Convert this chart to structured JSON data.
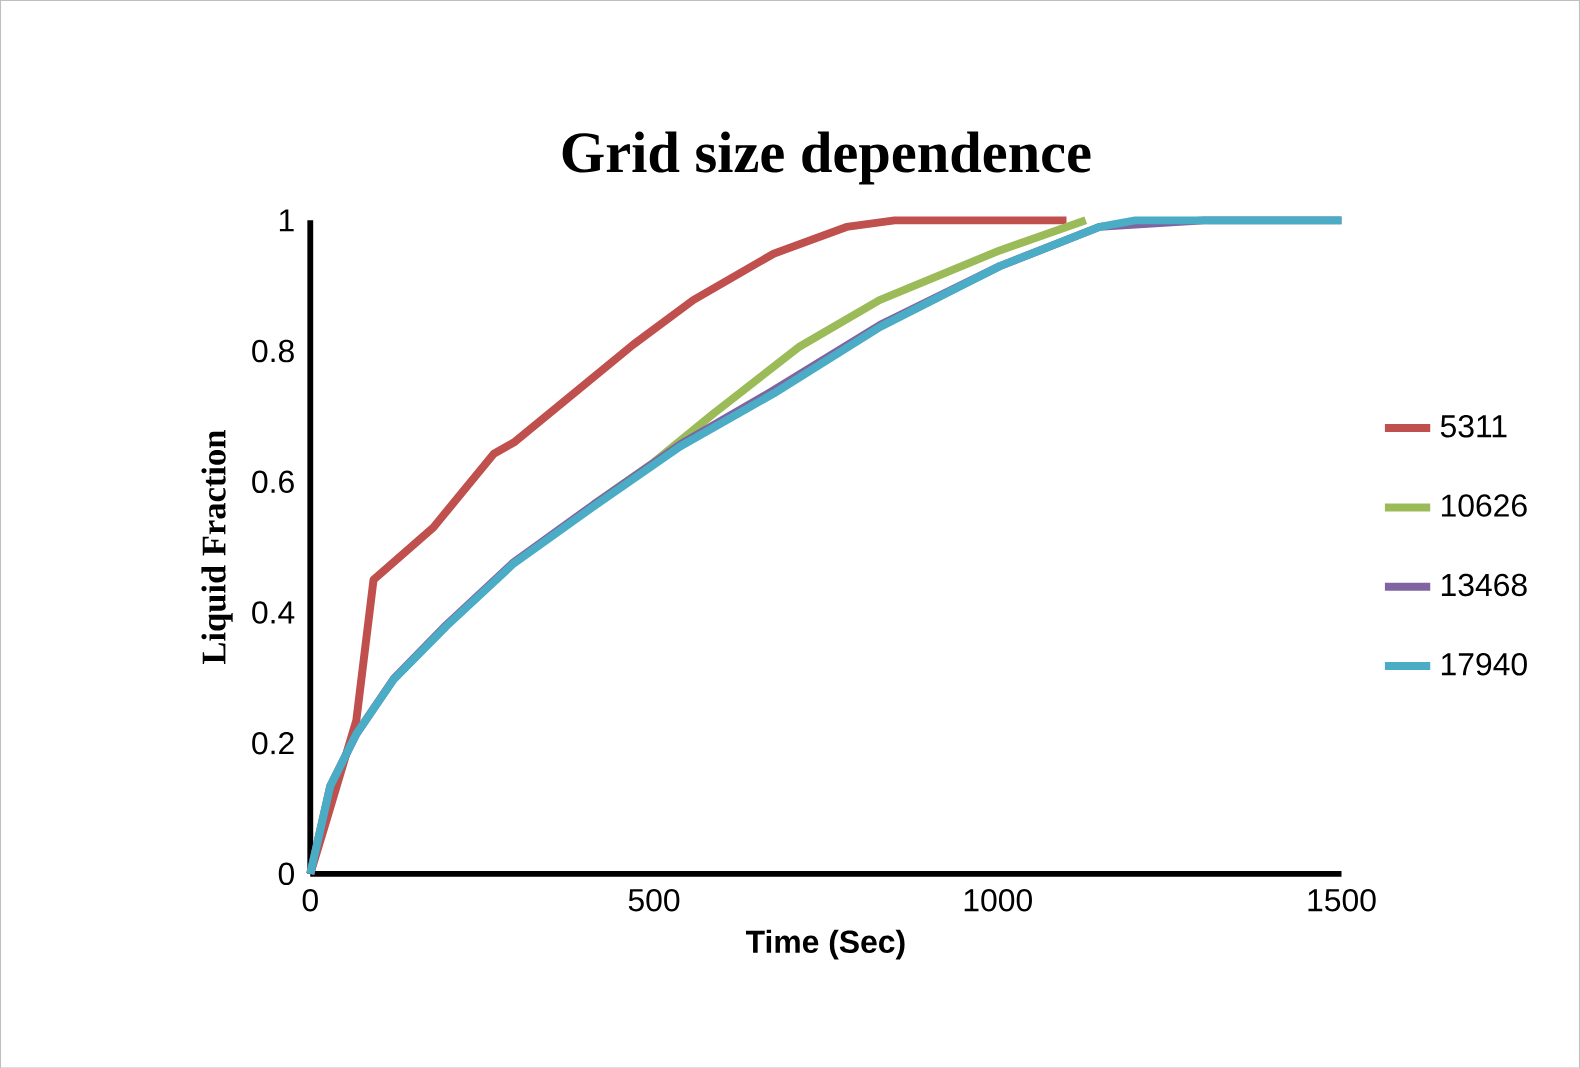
{
  "chart_data": {
    "type": "line",
    "title": "Grid size dependence",
    "xlabel": "Time (Sec)",
    "ylabel": "Liquid  Fraction",
    "xlim": [
      0,
      1500
    ],
    "xticks": [
      0,
      500,
      1000,
      1500
    ],
    "ylim": [
      0,
      1
    ],
    "yticks": [
      0,
      0.2,
      0.4,
      0.6,
      0.8,
      1
    ],
    "grid": false,
    "legend": "right",
    "line_style": "solid",
    "marker": "none",
    "series": [
      {
        "name": "5311",
        "color": "#c0504d",
        "x": [
          0,
          23,
          67,
          92,
          179,
          267,
          296,
          470,
          557,
          674,
          780,
          850,
          1000,
          1100
        ],
        "values": [
          0,
          0.08,
          0.235,
          0.45,
          0.53,
          0.643,
          0.66,
          0.81,
          0.878,
          0.949,
          0.99,
          1,
          1,
          1
        ]
      },
      {
        "name": "10626",
        "color": "#9bbb59",
        "x": [
          412,
          500,
          586,
          712,
          828,
          1003,
          1128
        ],
        "values": [
          0.565,
          0.63,
          0.704,
          0.807,
          0.878,
          0.954,
          1
        ]
      },
      {
        "name": "13468",
        "color": "#8064a2",
        "x": [
          0,
          29,
          67,
          121,
          198,
          296,
          412,
          538,
          674,
          829,
          1003,
          1148,
          1300,
          1500
        ],
        "values": [
          0,
          0.134,
          0.214,
          0.298,
          0.381,
          0.477,
          0.565,
          0.657,
          0.74,
          0.84,
          0.93,
          0.99,
          1,
          1
        ]
      },
      {
        "name": "17940",
        "color": "#4bacc6",
        "x": [
          0,
          29,
          67,
          121,
          198,
          296,
          412,
          538,
          674,
          829,
          1003,
          1148,
          1200,
          1500
        ],
        "values": [
          0,
          0.134,
          0.214,
          0.297,
          0.379,
          0.475,
          0.562,
          0.654,
          0.735,
          0.837,
          0.93,
          0.99,
          1,
          1
        ]
      }
    ]
  }
}
